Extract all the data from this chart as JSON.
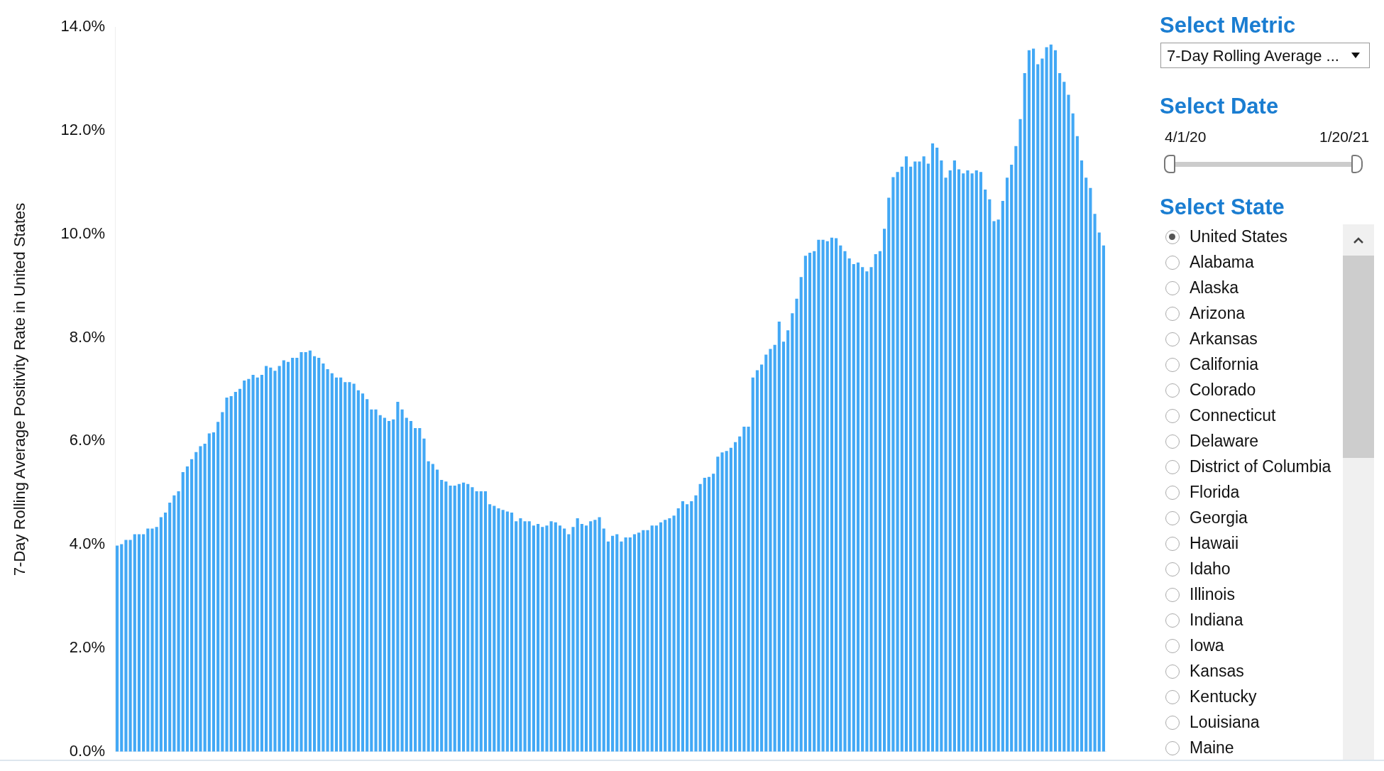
{
  "chart_data": {
    "type": "bar",
    "ylabel": "7-Day Rolling Average Positivity Rate in United States",
    "color": "#42a8f5",
    "grid": false,
    "ylim": [
      0,
      14
    ],
    "yticks": [
      {
        "value": 0,
        "label": "0.0%"
      },
      {
        "value": 2,
        "label": "2.0%"
      },
      {
        "value": 4,
        "label": "4.0%"
      },
      {
        "value": 6,
        "label": "6.0%"
      },
      {
        "value": 8,
        "label": "8.0%"
      },
      {
        "value": 10,
        "label": "10.0%"
      },
      {
        "value": 12,
        "label": "12.0%"
      },
      {
        "value": 14,
        "label": "14.0%"
      }
    ],
    "categories": [
      null,
      null,
      null,
      null,
      null,
      null,
      null,
      null,
      null,
      null,
      null,
      null,
      null,
      null,
      null,
      null,
      null,
      null,
      null,
      null,
      null,
      null,
      null,
      null,
      null,
      null,
      null,
      null,
      null,
      null,
      null,
      null,
      null,
      null,
      null,
      null,
      null,
      null,
      null,
      null,
      null,
      null,
      null,
      null,
      null,
      null,
      null,
      null,
      null,
      null,
      null,
      null,
      null,
      null,
      null,
      null,
      null,
      null,
      null,
      null,
      null,
      null,
      null,
      null,
      null,
      null,
      null,
      null,
      null,
      null,
      null,
      null,
      null,
      null,
      null,
      null,
      null,
      null,
      null,
      null,
      null,
      null,
      null,
      null,
      null,
      null,
      null,
      null,
      null,
      null,
      null,
      null,
      null,
      null,
      null,
      null,
      null,
      null,
      null,
      null,
      null,
      null,
      null,
      null,
      null,
      null,
      null,
      null,
      null,
      null,
      null,
      null,
      null,
      null,
      null,
      null,
      null,
      null,
      null,
      null,
      null,
      null,
      null,
      null,
      null,
      null,
      null,
      null,
      null,
      null,
      null,
      null,
      null,
      null,
      null,
      null,
      null,
      null,
      null,
      null,
      null,
      null,
      null,
      null,
      null,
      null,
      null,
      null,
      null,
      null,
      null,
      null,
      null,
      null,
      null,
      null,
      null,
      null,
      null,
      null,
      null,
      null,
      null,
      null,
      null,
      null,
      null,
      null,
      null,
      null,
      null,
      null,
      null,
      null,
      null,
      null,
      null,
      null,
      null,
      null,
      null,
      null,
      null,
      null,
      null,
      null,
      null,
      null,
      null,
      null,
      null,
      null,
      null,
      null,
      null,
      null,
      null,
      null,
      null,
      null,
      null,
      null,
      null,
      null,
      null,
      null,
      null,
      null,
      null,
      null,
      null,
      null,
      null,
      null,
      null,
      null,
      null,
      null,
      null,
      null,
      null,
      null,
      null,
      null,
      null,
      null
    ],
    "values": [
      3.98,
      4.01,
      4.09,
      4.09,
      4.2,
      4.2,
      4.2,
      4.31,
      4.31,
      4.34,
      4.53,
      4.62,
      4.81,
      4.95,
      5.03,
      5.4,
      5.51,
      5.65,
      5.79,
      5.9,
      5.95,
      6.15,
      6.17,
      6.37,
      6.56,
      6.84,
      6.87,
      6.95,
      7.01,
      7.17,
      7.2,
      7.28,
      7.23,
      7.28,
      7.45,
      7.42,
      7.36,
      7.45,
      7.56,
      7.53,
      7.61,
      7.61,
      7.72,
      7.72,
      7.75,
      7.64,
      7.61,
      7.5,
      7.39,
      7.31,
      7.23,
      7.23,
      7.14,
      7.14,
      7.11,
      6.98,
      6.92,
      6.81,
      6.61,
      6.61,
      6.5,
      6.45,
      6.39,
      6.42,
      6.76,
      6.61,
      6.45,
      6.39,
      6.25,
      6.25,
      6.05,
      5.61,
      5.56,
      5.45,
      5.25,
      5.22,
      5.14,
      5.14,
      5.17,
      5.2,
      5.17,
      5.11,
      5.03,
      5.03,
      5.03,
      4.78,
      4.75,
      4.7,
      4.67,
      4.64,
      4.62,
      4.45,
      4.51,
      4.45,
      4.45,
      4.37,
      4.4,
      4.34,
      4.37,
      4.45,
      4.43,
      4.37,
      4.31,
      4.2,
      4.34,
      4.51,
      4.4,
      4.37,
      4.45,
      4.48,
      4.53,
      4.31,
      4.06,
      4.17,
      4.2,
      4.06,
      4.14,
      4.14,
      4.2,
      4.23,
      4.28,
      4.28,
      4.37,
      4.37,
      4.43,
      4.48,
      4.51,
      4.56,
      4.7,
      4.84,
      4.78,
      4.84,
      4.95,
      5.17,
      5.29,
      5.31,
      5.37,
      5.7,
      5.78,
      5.81,
      5.87,
      5.98,
      6.09,
      6.28,
      6.28,
      7.23,
      7.37,
      7.48,
      7.67,
      7.78,
      7.86,
      8.31,
      7.92,
      8.14,
      8.47,
      8.75,
      9.17,
      9.58,
      9.64,
      9.67,
      9.89,
      9.89,
      9.86,
      9.93,
      9.92,
      9.78,
      9.67,
      9.53,
      9.42,
      9.45,
      9.36,
      9.28,
      9.36,
      9.61,
      9.67,
      10.1,
      10.7,
      11.1,
      11.2,
      11.3,
      11.5,
      11.3,
      11.4,
      11.4,
      11.5,
      11.36,
      11.75,
      11.67,
      11.42,
      11.09,
      11.23,
      11.42,
      11.25,
      11.17,
      11.23,
      11.17,
      11.23,
      11.2,
      10.86,
      10.67,
      10.25,
      10.28,
      10.64,
      11.09,
      11.34,
      11.7,
      12.22,
      13.11,
      13.55,
      13.58,
      13.28,
      13.39,
      13.61,
      13.66,
      13.55,
      13.11,
      12.94,
      12.69,
      12.33,
      11.89,
      11.42,
      11.09,
      10.89,
      10.39,
      10.03,
      9.78
    ],
    "annotations": [
      "Select Metric",
      "7-Day Rolling Average ...",
      "Select Date",
      "4/1/20",
      "1/20/21",
      "Select State",
      "United States",
      "Alabama",
      "Alaska",
      "Arizona",
      "Arkansas",
      "California",
      "Colorado",
      "Connecticut",
      "Delaware",
      "District of Columbia",
      "Florida",
      "Georgia",
      "Hawaii",
      "Idaho",
      "Illinois",
      "Indiana",
      "Iowa",
      "Kansas",
      "Kentucky",
      "Louisiana",
      "Maine"
    ]
  }
}
